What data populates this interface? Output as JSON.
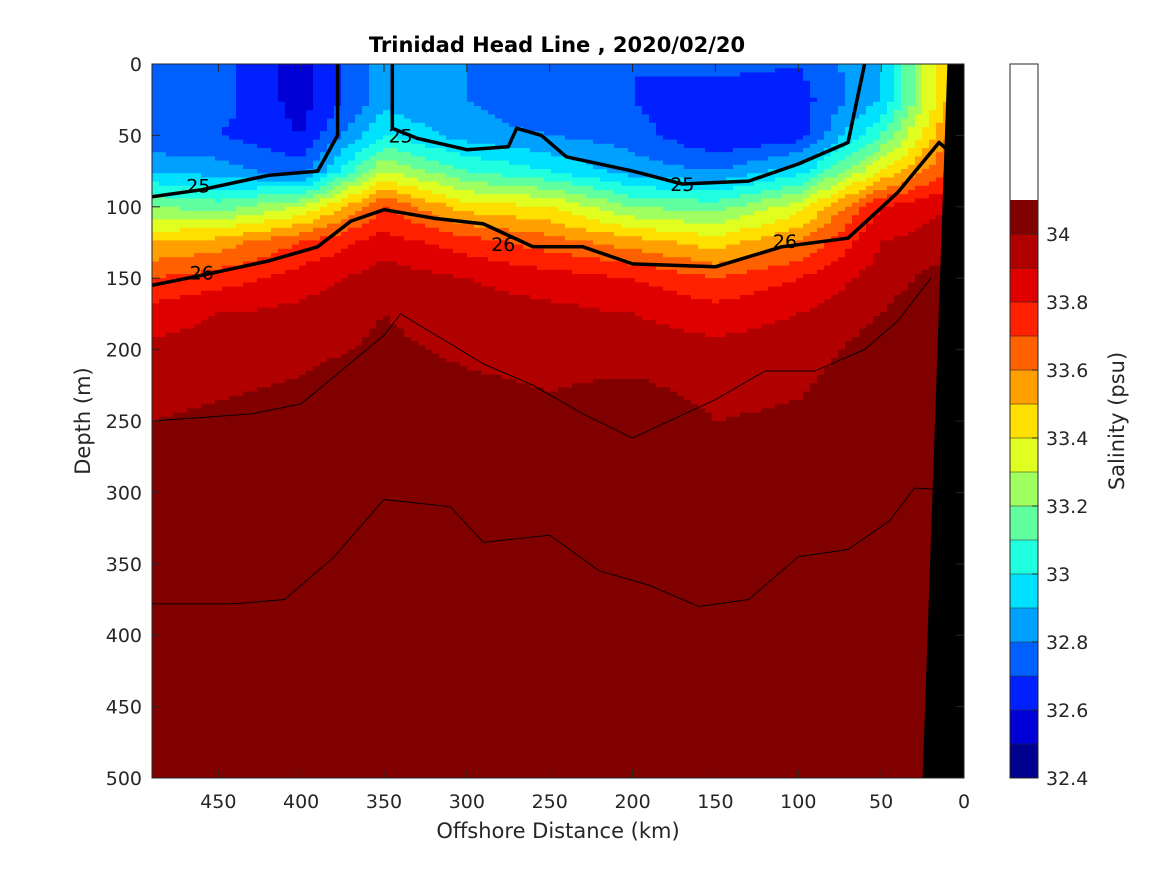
{
  "chart_data": {
    "type": "heatmap",
    "title": "Trinidad Head Line , 2020/02/20",
    "xlabel": "Offshore Distance (km)",
    "ylabel": "Depth (m)",
    "xlim": [
      490,
      0
    ],
    "ylim": [
      0,
      500
    ],
    "x_reversed": true,
    "y_reversed": true,
    "x_ticks": [
      "450",
      "400",
      "350",
      "300",
      "250",
      "200",
      "150",
      "100",
      "50",
      "0"
    ],
    "x_tick_values": [
      450,
      400,
      350,
      300,
      250,
      200,
      150,
      100,
      50,
      0
    ],
    "y_ticks": [
      "0",
      "50",
      "100",
      "150",
      "200",
      "250",
      "300",
      "350",
      "400",
      "450",
      "500"
    ],
    "y_tick_values": [
      0,
      50,
      100,
      150,
      200,
      250,
      300,
      350,
      400,
      450,
      500
    ],
    "colorbar": {
      "label": "Salinity (psu)",
      "range": [
        32.4,
        34.5
      ],
      "ticks": [
        "32.4",
        "32.6",
        "32.8",
        "33",
        "33.2",
        "33.4",
        "33.6",
        "33.8",
        "34"
      ],
      "tick_values": [
        32.4,
        32.6,
        32.8,
        33.0,
        33.2,
        33.4,
        33.6,
        33.8,
        34.0
      ],
      "step": 0.1,
      "colors": [
        "#00008f",
        "#0000d6",
        "#0020ff",
        "#0060ff",
        "#00a0ff",
        "#00e0ff",
        "#20ffdf",
        "#60ff9f",
        "#a0ff60",
        "#e0ff20",
        "#ffdf00",
        "#ffa000",
        "#ff6000",
        "#ff2000",
        "#df0000",
        "#b00000",
        "#800000"
      ]
    },
    "salinity_field": {
      "x_km": [
        490,
        450,
        400,
        350,
        300,
        250,
        200,
        150,
        100,
        50,
        10
      ],
      "depth_m": [
        0,
        25,
        50,
        75,
        100,
        125,
        150,
        175,
        200,
        250,
        300,
        350,
        400,
        450,
        500
      ],
      "values": [
        [
          32.75,
          32.75,
          32.55,
          32.85,
          32.8,
          32.7,
          32.7,
          32.75,
          32.7,
          32.9,
          33.5
        ],
        [
          32.75,
          32.75,
          32.55,
          32.85,
          32.8,
          32.7,
          32.7,
          32.6,
          32.65,
          32.9,
          33.5
        ],
        [
          32.7,
          32.7,
          32.6,
          33.0,
          32.85,
          32.8,
          32.75,
          32.6,
          32.65,
          33.1,
          33.6
        ],
        [
          32.9,
          32.85,
          32.75,
          33.3,
          33.1,
          33.0,
          32.85,
          32.8,
          32.95,
          33.4,
          33.7
        ],
        [
          33.2,
          33.15,
          33.3,
          33.7,
          33.45,
          33.4,
          33.2,
          33.15,
          33.35,
          33.8,
          33.9
        ],
        [
          33.5,
          33.55,
          33.7,
          33.85,
          33.75,
          33.65,
          33.55,
          33.45,
          33.6,
          33.9,
          33.95
        ],
        [
          33.7,
          33.75,
          33.85,
          33.95,
          33.9,
          33.85,
          33.8,
          33.7,
          33.8,
          33.95,
          34.05
        ],
        [
          33.85,
          33.9,
          33.93,
          34.0,
          33.95,
          33.93,
          33.9,
          33.85,
          33.9,
          34.0,
          34.1
        ],
        [
          33.92,
          33.95,
          33.97,
          34.02,
          33.98,
          33.97,
          33.95,
          33.93,
          33.95,
          34.05,
          34.15
        ],
        [
          34.0,
          34.02,
          34.05,
          34.12,
          34.05,
          34.02,
          34.08,
          34.0,
          34.02,
          34.12,
          34.2
        ],
        [
          34.05,
          34.1,
          34.12,
          34.15,
          34.1,
          34.05,
          34.12,
          34.02,
          34.08,
          34.18,
          34.22
        ],
        [
          34.1,
          34.15,
          34.15,
          34.18,
          34.12,
          34.12,
          34.15,
          34.05,
          34.12,
          34.22,
          34.25
        ],
        [
          34.12,
          34.15,
          34.17,
          34.2,
          34.15,
          34.15,
          34.15,
          34.08,
          34.15,
          34.25,
          34.28
        ],
        [
          34.15,
          34.15,
          34.18,
          34.22,
          34.2,
          34.15,
          34.15,
          34.12,
          34.18,
          34.3,
          34.3
        ],
        [
          34.15,
          34.18,
          34.2,
          34.25,
          34.22,
          34.18,
          34.18,
          34.15,
          34.2,
          34.3,
          34.3
        ]
      ]
    },
    "density_contours": [
      {
        "label": "25",
        "bold": true,
        "points": [
          [
            490,
            93
          ],
          [
            460,
            88
          ],
          [
            420,
            78
          ],
          [
            390,
            75
          ],
          [
            378,
            50
          ],
          [
            378,
            0
          ]
        ]
      },
      {
        "label": "25",
        "bold": true,
        "points": [
          [
            345,
            0
          ],
          [
            345,
            45
          ],
          [
            330,
            52
          ],
          [
            300,
            60
          ],
          [
            275,
            58
          ],
          [
            270,
            45
          ],
          [
            255,
            50
          ],
          [
            240,
            65
          ],
          [
            200,
            75
          ],
          [
            170,
            84
          ],
          [
            130,
            82
          ],
          [
            100,
            70
          ],
          [
            70,
            55
          ],
          [
            60,
            0
          ]
        ]
      },
      {
        "label": "26",
        "bold": true,
        "points": [
          [
            490,
            155
          ],
          [
            460,
            148
          ],
          [
            420,
            138
          ],
          [
            390,
            128
          ],
          [
            370,
            110
          ],
          [
            350,
            102
          ],
          [
            320,
            108
          ],
          [
            290,
            112
          ],
          [
            260,
            128
          ],
          [
            230,
            128
          ],
          [
            200,
            140
          ],
          [
            150,
            142
          ],
          [
            110,
            128
          ],
          [
            70,
            122
          ],
          [
            40,
            90
          ],
          [
            15,
            55
          ],
          [
            0,
            70
          ]
        ]
      },
      {
        "label": "",
        "bold": false,
        "points": [
          [
            490,
            250
          ],
          [
            430,
            245
          ],
          [
            400,
            238
          ],
          [
            350,
            190
          ],
          [
            340,
            175
          ],
          [
            290,
            210
          ],
          [
            260,
            225
          ],
          [
            230,
            245
          ],
          [
            200,
            262
          ],
          [
            150,
            235
          ],
          [
            120,
            215
          ],
          [
            90,
            215
          ],
          [
            60,
            200
          ],
          [
            40,
            180
          ],
          [
            20,
            150
          ]
        ]
      },
      {
        "label": "",
        "bold": false,
        "points": [
          [
            490,
            378
          ],
          [
            440,
            378
          ],
          [
            410,
            375
          ],
          [
            380,
            345
          ],
          [
            350,
            305
          ],
          [
            310,
            310
          ],
          [
            290,
            335
          ],
          [
            250,
            330
          ],
          [
            220,
            355
          ],
          [
            190,
            365
          ],
          [
            160,
            380
          ],
          [
            130,
            375
          ],
          [
            100,
            345
          ],
          [
            70,
            340
          ],
          [
            45,
            320
          ],
          [
            30,
            297
          ],
          [
            15,
            298
          ]
        ]
      }
    ],
    "contour_labels": [
      {
        "text": "25",
        "x": 462,
        "y": 85
      },
      {
        "text": "25",
        "x": 340,
        "y": 50
      },
      {
        "text": "25",
        "x": 170,
        "y": 84
      },
      {
        "text": "26",
        "x": 460,
        "y": 146
      },
      {
        "text": "26",
        "x": 278,
        "y": 126
      },
      {
        "text": "26",
        "x": 108,
        "y": 124
      }
    ],
    "seafloor": [
      [
        10,
        0
      ],
      [
        0,
        0
      ],
      [
        0,
        500
      ],
      [
        25,
        500
      ]
    ]
  }
}
